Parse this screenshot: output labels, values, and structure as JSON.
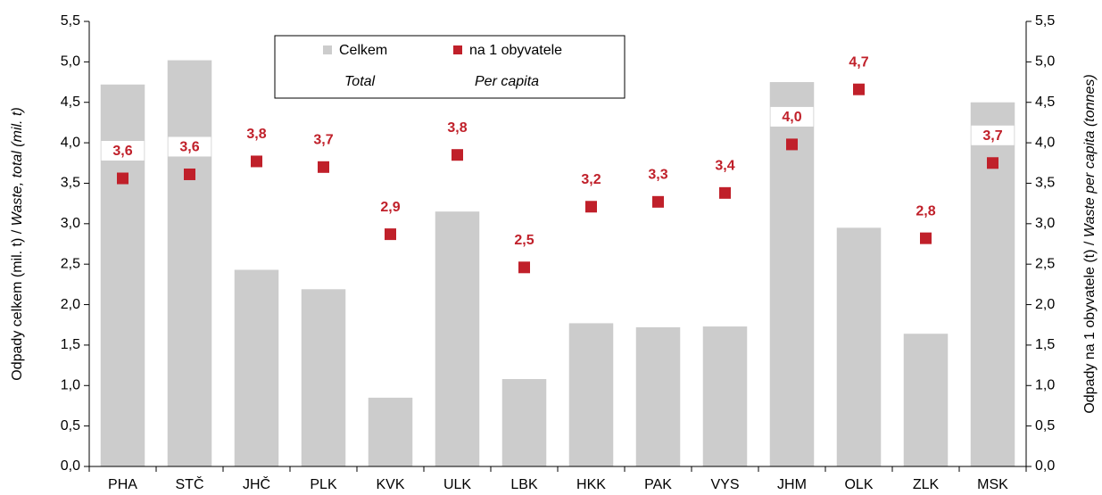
{
  "chart_data": {
    "type": "bar",
    "categories": [
      "PHA",
      "STČ",
      "JHČ",
      "PLK",
      "KVK",
      "ULK",
      "LBK",
      "HKK",
      "PAK",
      "VYS",
      "JHM",
      "OLK",
      "ZLK",
      "MSK"
    ],
    "series": [
      {
        "name": "Celkem",
        "name_en": "Total",
        "type": "bar",
        "color": "#cccccc",
        "values": [
          4.72,
          5.02,
          2.43,
          2.19,
          0.85,
          3.15,
          1.08,
          1.77,
          1.72,
          1.73,
          4.75,
          2.95,
          1.64,
          4.5
        ]
      },
      {
        "name": "na 1 obyvatele",
        "name_en": "Per capita",
        "type": "scatter",
        "color": "#c0202a",
        "axis": "y2",
        "values": [
          3.56,
          3.61,
          3.77,
          3.7,
          2.87,
          3.85,
          2.46,
          3.21,
          3.27,
          3.38,
          3.98,
          4.66,
          2.82,
          3.75
        ],
        "value_labels": [
          "3,6",
          "3,6",
          "3,8",
          "3,7",
          "2,9",
          "3,8",
          "2,5",
          "3,2",
          "3,3",
          "3,4",
          "4,0",
          "4,7",
          "2,8",
          "3,7"
        ]
      }
    ],
    "ylabel": [
      "Odpady celkem (mil. t) / ",
      "Waste, total (mil. t)"
    ],
    "y2label": [
      "Odpady na 1 obyvatele (t) / ",
      "Waste per capita (tonnes)"
    ],
    "ylim": [
      0,
      5.5
    ],
    "yticks": [
      {
        "value": 0,
        "label": "0,0"
      },
      {
        "value": 0.5,
        "label": "0,5"
      },
      {
        "value": 1,
        "label": "1,0"
      },
      {
        "value": 1.5,
        "label": "1,5"
      },
      {
        "value": 2,
        "label": "2,0"
      },
      {
        "value": 2.5,
        "label": "2,5"
      },
      {
        "value": 3,
        "label": "3,0"
      },
      {
        "value": 3.5,
        "label": "3,5"
      },
      {
        "value": 4,
        "label": "4,0"
      },
      {
        "value": 4.5,
        "label": "4,5"
      },
      {
        "value": 5,
        "label": "5,0"
      },
      {
        "value": 5.5,
        "label": "5,5"
      }
    ],
    "y2lim": [
      0,
      5.5
    ],
    "y2ticks": [
      {
        "value": 0,
        "label": "0,0"
      },
      {
        "value": 0.5,
        "label": "0,5"
      },
      {
        "value": 1,
        "label": "1,0"
      },
      {
        "value": 1.5,
        "label": "1,5"
      },
      {
        "value": 2,
        "label": "2,0"
      },
      {
        "value": 2.5,
        "label": "2,5"
      },
      {
        "value": 3,
        "label": "3,0"
      },
      {
        "value": 3.5,
        "label": "3,5"
      },
      {
        "value": 4,
        "label": "4,0"
      },
      {
        "value": 4.5,
        "label": "4,5"
      },
      {
        "value": 5,
        "label": "5,0"
      },
      {
        "value": 5.5,
        "label": "5,5"
      }
    ],
    "grid": false
  }
}
